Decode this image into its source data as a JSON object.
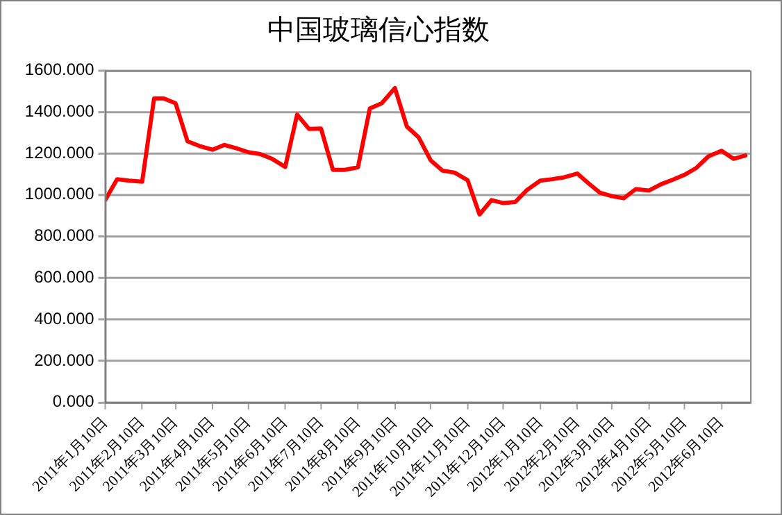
{
  "chart_data": {
    "type": "line",
    "title": "中国玻璃信心指数",
    "x": [
      "2011-01-10",
      "2011-01-20",
      "2011-01-30",
      "2011-02-10",
      "2011-02-20",
      "2011-02-28",
      "2011-03-10",
      "2011-03-20",
      "2011-03-30",
      "2011-04-10",
      "2011-04-20",
      "2011-04-30",
      "2011-05-10",
      "2011-05-20",
      "2011-05-30",
      "2011-06-10",
      "2011-06-20",
      "2011-06-30",
      "2011-07-10",
      "2011-07-20",
      "2011-07-30",
      "2011-08-10",
      "2011-08-20",
      "2011-08-30",
      "2011-09-10",
      "2011-09-20",
      "2011-09-30",
      "2011-10-10",
      "2011-10-20",
      "2011-10-30",
      "2011-11-10",
      "2011-11-20",
      "2011-11-30",
      "2011-12-10",
      "2011-12-20",
      "2011-12-30",
      "2012-01-10",
      "2012-01-20",
      "2012-01-30",
      "2012-02-10",
      "2012-02-20",
      "2012-02-29",
      "2012-03-10",
      "2012-03-20",
      "2012-03-30",
      "2012-04-10",
      "2012-04-20",
      "2012-04-30",
      "2012-05-10",
      "2012-05-20",
      "2012-05-30",
      "2012-06-10",
      "2012-06-20",
      "2012-06-30"
    ],
    "series": [
      {
        "color": "#ff0000",
        "values": [
          975,
          1076,
          1069,
          1064,
          1465,
          1465,
          1442,
          1259,
          1236,
          1218,
          1241,
          1225,
          1206,
          1197,
          1174,
          1135,
          1387,
          1318,
          1320,
          1121,
          1121,
          1133,
          1417,
          1442,
          1515,
          1330,
          1277,
          1167,
          1117,
          1108,
          1071,
          906,
          975,
          961,
          966,
          1025,
          1069,
          1076,
          1085,
          1103,
          1053,
          1011,
          994,
          984,
          1028,
          1021,
          1051,
          1073,
          1097,
          1131,
          1186,
          1213,
          1174,
          1190
        ]
      }
    ],
    "xlim": [
      "2011-01-10",
      "2012-07-04"
    ],
    "xticks": [
      {
        "value": "2011-01-10",
        "label": "2011年1月10日"
      },
      {
        "value": "2011-02-10",
        "label": "2011年2月10日"
      },
      {
        "value": "2011-03-10",
        "label": "2011年3月10日"
      },
      {
        "value": "2011-04-10",
        "label": "2011年4月10日"
      },
      {
        "value": "2011-05-10",
        "label": "2011年5月10日"
      },
      {
        "value": "2011-06-10",
        "label": "2011年6月10日"
      },
      {
        "value": "2011-07-10",
        "label": "2011年7月10日"
      },
      {
        "value": "2011-08-10",
        "label": "2011年8月10日"
      },
      {
        "value": "2011-09-10",
        "label": "2011年9月10日"
      },
      {
        "value": "2011-10-10",
        "label": "2011年10月10日"
      },
      {
        "value": "2011-11-10",
        "label": "2011年11月10日"
      },
      {
        "value": "2011-12-10",
        "label": "2011年12月10日"
      },
      {
        "value": "2012-01-10",
        "label": "2012年1月10日"
      },
      {
        "value": "2012-02-10",
        "label": "2012年2月10日"
      },
      {
        "value": "2012-03-10",
        "label": "2012年3月10日"
      },
      {
        "value": "2012-04-10",
        "label": "2012年4月10日"
      },
      {
        "value": "2012-05-10",
        "label": "2012年5月10日"
      },
      {
        "value": "2012-06-10",
        "label": "2012年6月10日"
      }
    ],
    "ylim": [
      0,
      1600
    ],
    "yticks": [
      {
        "value": 0,
        "label": "0.000"
      },
      {
        "value": 200,
        "label": "200.000"
      },
      {
        "value": 400,
        "label": "400.000"
      },
      {
        "value": 600,
        "label": "600.000"
      },
      {
        "value": 800,
        "label": "800.000"
      },
      {
        "value": 1000,
        "label": "1000.000"
      },
      {
        "value": 1200,
        "label": "1200.000"
      },
      {
        "value": 1400,
        "label": "1400.000"
      },
      {
        "value": 1600,
        "label": "1600.000"
      }
    ],
    "grid": "y",
    "marker": "none",
    "line_style": "solid",
    "legend": false
  }
}
